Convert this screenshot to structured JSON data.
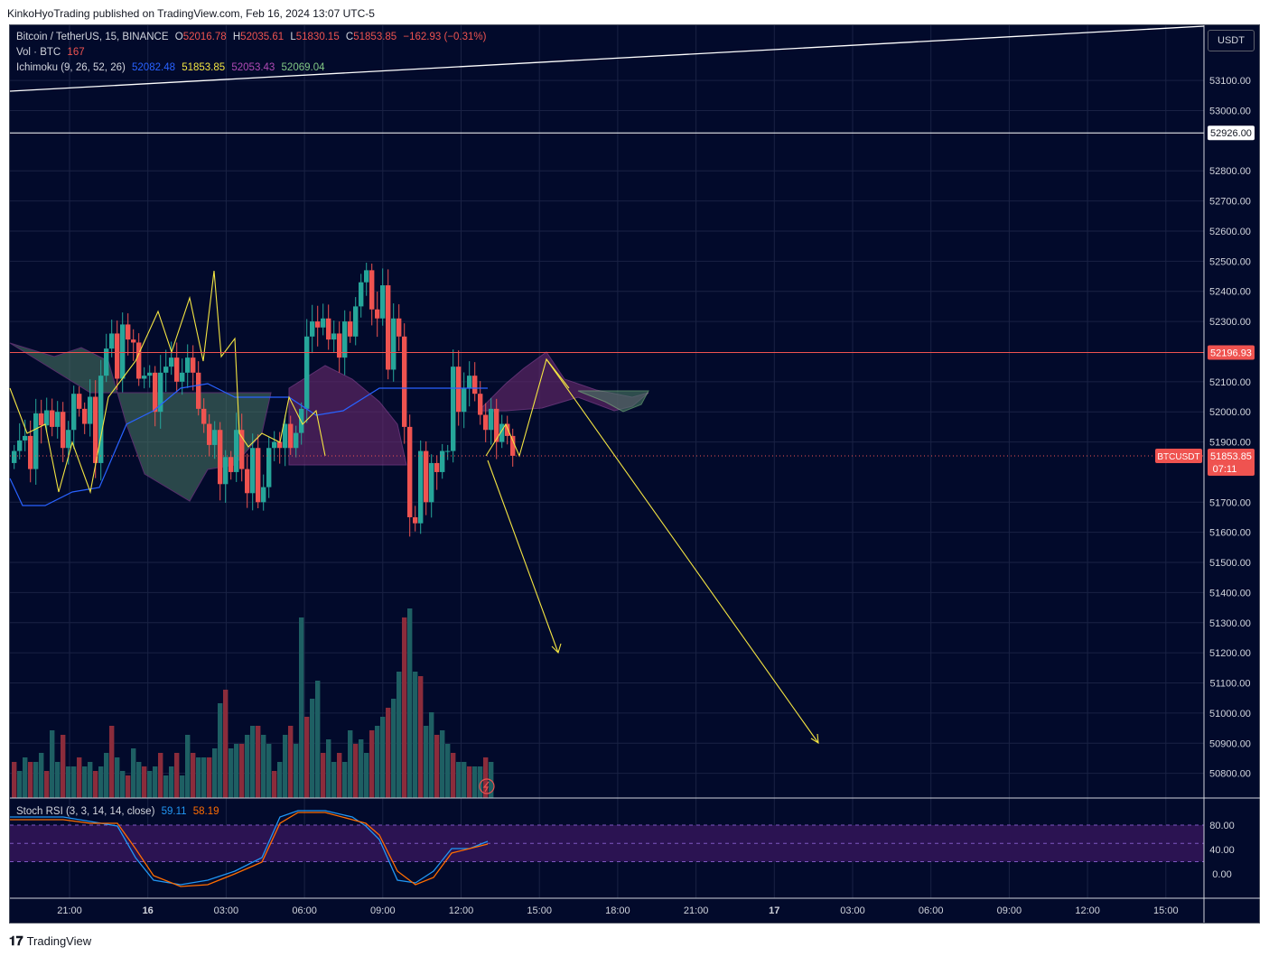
{
  "publisher_line": "KinkoHyoTrading published on TradingView.com, Feb 16, 2024 13:07 UTC-5",
  "symbol": {
    "name": "Bitcoin / TetherUS, 15, BINANCE",
    "o_label": "O",
    "o_value": "52016.78",
    "h_label": "H",
    "h_value": "52035.61",
    "l_label": "L",
    "l_value": "51830.15",
    "c_label": "C",
    "c_value": "51853.85",
    "change": "−162.93 (−0.31%)"
  },
  "volume": {
    "label": "Vol · BTC",
    "value": "167"
  },
  "ichimoku": {
    "label": "Ichimoku (9, 26, 52, 26)",
    "v1": "52082.48",
    "v2": "51853.85",
    "v3": "52053.43",
    "v4": "52069.04"
  },
  "stoch": {
    "label": "Stoch RSI (3, 3, 14, 14, close)",
    "k": "59.11",
    "d": "58.19"
  },
  "currency_button": "USDT",
  "price_axis": [
    "53100.00",
    "53000.00",
    "52926.00",
    "52800.00",
    "52700.00",
    "52600.00",
    "52500.00",
    "52400.00",
    "52300.00",
    "52196.93",
    "52100.00",
    "52000.00",
    "51900.00",
    "51853.85",
    "51700.00",
    "51600.00",
    "51500.00",
    "51400.00",
    "51300.00",
    "51200.00",
    "51100.00",
    "51000.00",
    "50900.00",
    "50800.00"
  ],
  "price_labels": {
    "level_white": "52926.00",
    "level_red": "52196.93",
    "current": "51853.85",
    "countdown": "07:11",
    "symbol_tag": "BTCUSDT"
  },
  "stoch_axis": [
    "80.00",
    "40.00",
    "0.00"
  ],
  "time_axis": [
    "21:00",
    "16",
    "03:00",
    "06:00",
    "09:00",
    "12:00",
    "15:00",
    "18:00",
    "21:00",
    "17",
    "03:00",
    "06:00",
    "09:00",
    "12:00",
    "15:00"
  ],
  "footer_brand": "TradingView",
  "colors": {
    "background": "#020a2b",
    "up": "#26a69a",
    "down": "#ef5350",
    "conversion": "#2962ff",
    "lagging": "#f4e542",
    "cloud_bull": "#4c7a64",
    "cloud_bear": "#6b2a6e",
    "stoch_k": "#2196f3",
    "stoch_d": "#ff6d00"
  }
}
